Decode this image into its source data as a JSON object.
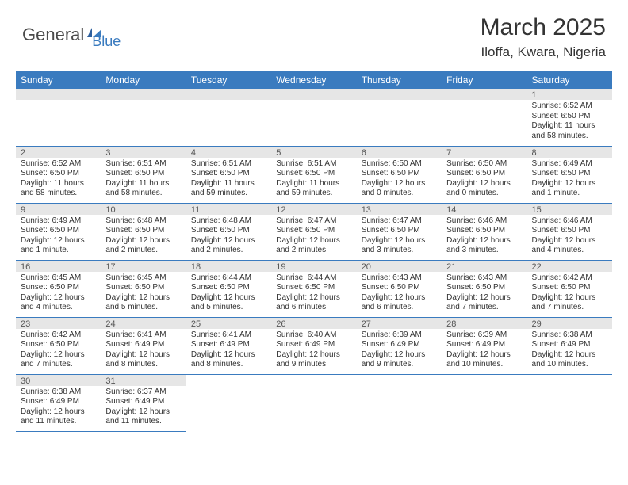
{
  "logo": {
    "part1": "General",
    "part2": "Blue"
  },
  "title": "March 2025",
  "location": "Iloffa, Kwara, Nigeria",
  "colors": {
    "header_bg": "#3a7bbf",
    "header_text": "#ffffff",
    "daynum_bg": "#e6e6e6",
    "border": "#3a7bbf",
    "text": "#333333",
    "logo_gray": "#4a4a4a",
    "logo_blue": "#3a7bbf"
  },
  "weekdays": [
    "Sunday",
    "Monday",
    "Tuesday",
    "Wednesday",
    "Thursday",
    "Friday",
    "Saturday"
  ],
  "grid": [
    [
      null,
      null,
      null,
      null,
      null,
      null,
      {
        "n": "1",
        "sr": "Sunrise: 6:52 AM",
        "ss": "Sunset: 6:50 PM",
        "dl": "Daylight: 11 hours and 58 minutes."
      }
    ],
    [
      {
        "n": "2",
        "sr": "Sunrise: 6:52 AM",
        "ss": "Sunset: 6:50 PM",
        "dl": "Daylight: 11 hours and 58 minutes."
      },
      {
        "n": "3",
        "sr": "Sunrise: 6:51 AM",
        "ss": "Sunset: 6:50 PM",
        "dl": "Daylight: 11 hours and 58 minutes."
      },
      {
        "n": "4",
        "sr": "Sunrise: 6:51 AM",
        "ss": "Sunset: 6:50 PM",
        "dl": "Daylight: 11 hours and 59 minutes."
      },
      {
        "n": "5",
        "sr": "Sunrise: 6:51 AM",
        "ss": "Sunset: 6:50 PM",
        "dl": "Daylight: 11 hours and 59 minutes."
      },
      {
        "n": "6",
        "sr": "Sunrise: 6:50 AM",
        "ss": "Sunset: 6:50 PM",
        "dl": "Daylight: 12 hours and 0 minutes."
      },
      {
        "n": "7",
        "sr": "Sunrise: 6:50 AM",
        "ss": "Sunset: 6:50 PM",
        "dl": "Daylight: 12 hours and 0 minutes."
      },
      {
        "n": "8",
        "sr": "Sunrise: 6:49 AM",
        "ss": "Sunset: 6:50 PM",
        "dl": "Daylight: 12 hours and 1 minute."
      }
    ],
    [
      {
        "n": "9",
        "sr": "Sunrise: 6:49 AM",
        "ss": "Sunset: 6:50 PM",
        "dl": "Daylight: 12 hours and 1 minute."
      },
      {
        "n": "10",
        "sr": "Sunrise: 6:48 AM",
        "ss": "Sunset: 6:50 PM",
        "dl": "Daylight: 12 hours and 2 minutes."
      },
      {
        "n": "11",
        "sr": "Sunrise: 6:48 AM",
        "ss": "Sunset: 6:50 PM",
        "dl": "Daylight: 12 hours and 2 minutes."
      },
      {
        "n": "12",
        "sr": "Sunrise: 6:47 AM",
        "ss": "Sunset: 6:50 PM",
        "dl": "Daylight: 12 hours and 2 minutes."
      },
      {
        "n": "13",
        "sr": "Sunrise: 6:47 AM",
        "ss": "Sunset: 6:50 PM",
        "dl": "Daylight: 12 hours and 3 minutes."
      },
      {
        "n": "14",
        "sr": "Sunrise: 6:46 AM",
        "ss": "Sunset: 6:50 PM",
        "dl": "Daylight: 12 hours and 3 minutes."
      },
      {
        "n": "15",
        "sr": "Sunrise: 6:46 AM",
        "ss": "Sunset: 6:50 PM",
        "dl": "Daylight: 12 hours and 4 minutes."
      }
    ],
    [
      {
        "n": "16",
        "sr": "Sunrise: 6:45 AM",
        "ss": "Sunset: 6:50 PM",
        "dl": "Daylight: 12 hours and 4 minutes."
      },
      {
        "n": "17",
        "sr": "Sunrise: 6:45 AM",
        "ss": "Sunset: 6:50 PM",
        "dl": "Daylight: 12 hours and 5 minutes."
      },
      {
        "n": "18",
        "sr": "Sunrise: 6:44 AM",
        "ss": "Sunset: 6:50 PM",
        "dl": "Daylight: 12 hours and 5 minutes."
      },
      {
        "n": "19",
        "sr": "Sunrise: 6:44 AM",
        "ss": "Sunset: 6:50 PM",
        "dl": "Daylight: 12 hours and 6 minutes."
      },
      {
        "n": "20",
        "sr": "Sunrise: 6:43 AM",
        "ss": "Sunset: 6:50 PM",
        "dl": "Daylight: 12 hours and 6 minutes."
      },
      {
        "n": "21",
        "sr": "Sunrise: 6:43 AM",
        "ss": "Sunset: 6:50 PM",
        "dl": "Daylight: 12 hours and 7 minutes."
      },
      {
        "n": "22",
        "sr": "Sunrise: 6:42 AM",
        "ss": "Sunset: 6:50 PM",
        "dl": "Daylight: 12 hours and 7 minutes."
      }
    ],
    [
      {
        "n": "23",
        "sr": "Sunrise: 6:42 AM",
        "ss": "Sunset: 6:50 PM",
        "dl": "Daylight: 12 hours and 7 minutes."
      },
      {
        "n": "24",
        "sr": "Sunrise: 6:41 AM",
        "ss": "Sunset: 6:49 PM",
        "dl": "Daylight: 12 hours and 8 minutes."
      },
      {
        "n": "25",
        "sr": "Sunrise: 6:41 AM",
        "ss": "Sunset: 6:49 PM",
        "dl": "Daylight: 12 hours and 8 minutes."
      },
      {
        "n": "26",
        "sr": "Sunrise: 6:40 AM",
        "ss": "Sunset: 6:49 PM",
        "dl": "Daylight: 12 hours and 9 minutes."
      },
      {
        "n": "27",
        "sr": "Sunrise: 6:39 AM",
        "ss": "Sunset: 6:49 PM",
        "dl": "Daylight: 12 hours and 9 minutes."
      },
      {
        "n": "28",
        "sr": "Sunrise: 6:39 AM",
        "ss": "Sunset: 6:49 PM",
        "dl": "Daylight: 12 hours and 10 minutes."
      },
      {
        "n": "29",
        "sr": "Sunrise: 6:38 AM",
        "ss": "Sunset: 6:49 PM",
        "dl": "Daylight: 12 hours and 10 minutes."
      }
    ],
    [
      {
        "n": "30",
        "sr": "Sunrise: 6:38 AM",
        "ss": "Sunset: 6:49 PM",
        "dl": "Daylight: 12 hours and 11 minutes."
      },
      {
        "n": "31",
        "sr": "Sunrise: 6:37 AM",
        "ss": "Sunset: 6:49 PM",
        "dl": "Daylight: 12 hours and 11 minutes."
      },
      null,
      null,
      null,
      null,
      null
    ]
  ]
}
